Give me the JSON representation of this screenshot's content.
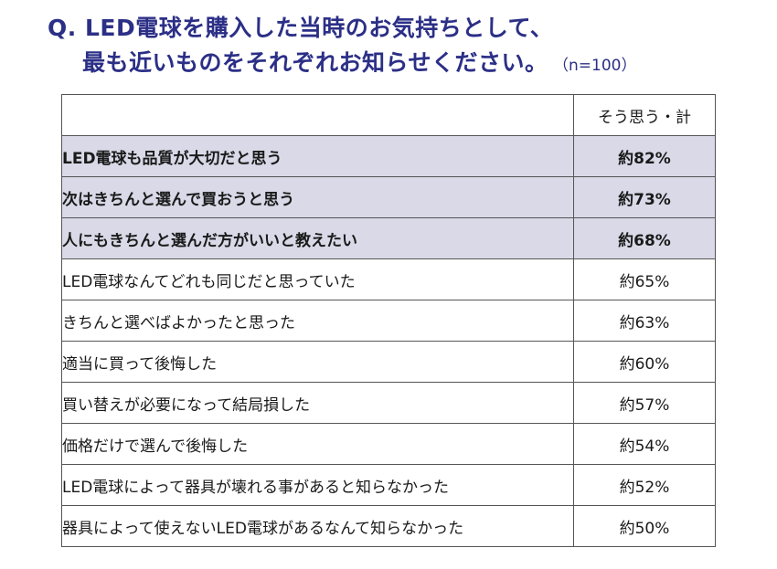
{
  "title": {
    "line1": "Q. LED電球を購入した当時のお気持ちとして、",
    "line2": "最も近いものをそれぞれお知らせください。",
    "sample": "（n=100）"
  },
  "table": {
    "column_header": "そう思う・計",
    "rows": [
      {
        "label": "LED電球も品質が大切だと思う",
        "value": "約82%"
      },
      {
        "label": "次はきちんと選んで買おうと思う",
        "value": "約73%"
      },
      {
        "label": "人にもきちんと選んだ方がいいと教えたい",
        "value": "約68%"
      },
      {
        "label": "LED電球なんてどれも同じだと思っていた",
        "value": "約65%"
      },
      {
        "label": "きちんと選べばよかったと思った",
        "value": "約63%"
      },
      {
        "label": "適当に買って後悔した",
        "value": "約60%"
      },
      {
        "label": "買い替えが必要になって結局損した",
        "value": "約57%"
      },
      {
        "label": "価格だけで選んで後悔した",
        "value": "約54%"
      },
      {
        "label": "LED電球によって器具が壊れる事があると知らなかった",
        "value": "約52%"
      },
      {
        "label": "器具によって使えないLED電球があるなんて知らなかった",
        "value": "約50%"
      }
    ]
  },
  "colors": {
    "title": "#2b2f86",
    "highlight_row": "#d9d9e8",
    "border": "#555555"
  }
}
